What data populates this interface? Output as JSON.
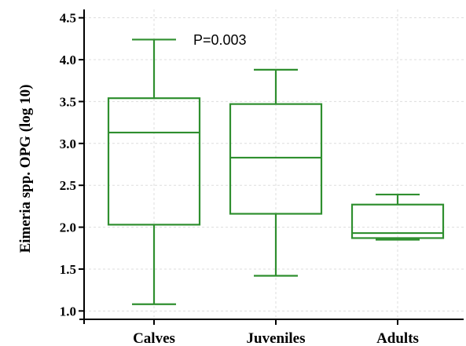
{
  "chart_data": {
    "type": "boxplot",
    "title": "",
    "xlabel": "",
    "ylabel": "Eimeria spp. OPG (log 10)",
    "ylim": [
      0.9,
      4.6
    ],
    "yticks": [
      "1.0",
      "1.5",
      "2.0",
      "2.5",
      "3.0",
      "3.5",
      "4.0",
      "4.5"
    ],
    "grid": true,
    "categories": [
      "Calves",
      "Juveniles",
      "Adults"
    ],
    "boxes": [
      {
        "category": "Calves",
        "min": 1.08,
        "q1": 2.03,
        "median": 3.13,
        "q3": 3.54,
        "max": 4.24
      },
      {
        "category": "Juveniles",
        "min": 1.42,
        "q1": 2.16,
        "median": 2.83,
        "q3": 3.47,
        "max": 3.88
      },
      {
        "category": "Adults",
        "min": 1.85,
        "q1": 1.87,
        "median": 1.93,
        "q3": 2.27,
        "max": 2.39
      }
    ],
    "annotation": "P=0.003",
    "box_color": "#2f8f2f"
  }
}
